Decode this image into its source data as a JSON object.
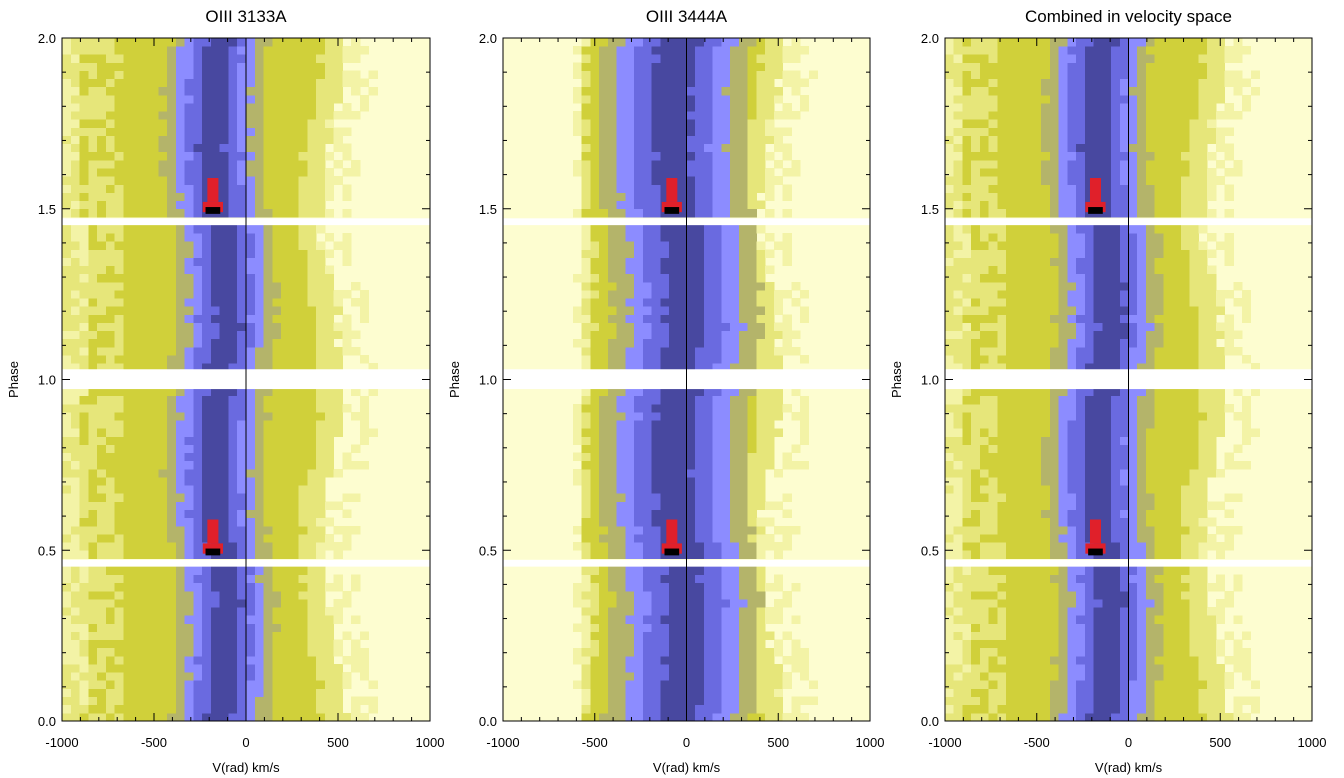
{
  "chart_data": [
    {
      "type": "heatmap",
      "title": "OIII 3133A",
      "xlabel": "V(rad) km/s",
      "ylabel": "Phase",
      "xlim": [
        -1000,
        1000
      ],
      "ylim": [
        0.0,
        2.0
      ],
      "x_ticks": [
        "-1000",
        "-500",
        "0",
        "500",
        "1000"
      ],
      "y_ticks": [
        "0.0",
        "0.5",
        "1.0",
        "1.5",
        "2.0"
      ],
      "reference_line_x": 0,
      "gaps": [
        [
          0.452,
          0.472
        ],
        [
          0.972,
          1.03
        ],
        [
          1.452,
          1.472
        ]
      ],
      "profile": {
        "center": -140,
        "core_half_width": 200,
        "outer_half_width": 470,
        "blue_wing_extent": 1000
      }
    },
    {
      "type": "heatmap",
      "title": "OIII 3444A",
      "xlabel": "V(rad) km/s",
      "ylabel": "Phase",
      "xlim": [
        -1000,
        1000
      ],
      "ylim": [
        0.0,
        2.0
      ],
      "x_ticks": [
        "-1000",
        "-500",
        "0",
        "500",
        "1000"
      ],
      "y_ticks": [
        "0.0",
        "0.5",
        "1.0",
        "1.5",
        "2.0"
      ],
      "reference_line_x": 0,
      "gaps": [
        [
          0.452,
          0.472
        ],
        [
          0.972,
          1.03
        ],
        [
          1.452,
          1.472
        ]
      ],
      "profile": {
        "center": -40,
        "core_half_width": 300,
        "outer_half_width": 460,
        "blue_wing_extent": 600
      }
    },
    {
      "type": "heatmap",
      "title": "Combined in velocity space",
      "xlabel": "V(rad) km/s",
      "ylabel": "Phase",
      "xlim": [
        -1000,
        1000
      ],
      "ylim": [
        0.0,
        2.0
      ],
      "x_ticks": [
        "-1000",
        "-500",
        "0",
        "500",
        "1000"
      ],
      "y_ticks": [
        "0.0",
        "0.5",
        "1.0",
        "1.5",
        "2.0"
      ],
      "reference_line_x": 0,
      "gaps": [
        [
          0.452,
          0.472
        ],
        [
          0.972,
          1.03
        ],
        [
          1.452,
          1.472
        ]
      ],
      "profile": {
        "center": -140,
        "core_half_width": 210,
        "outer_half_width": 470,
        "blue_wing_extent": 1000
      }
    }
  ],
  "colors": {
    "background": "#fdfdd0",
    "level1": "#f3f3a6",
    "level2": "#e6e67a",
    "level3": "#d0d03a",
    "level4": "#b4b46a",
    "level5": "#8c8cff",
    "level6": "#6a6ae0",
    "level7": "#4848a0",
    "peak": "#e0202a",
    "peak_core": "#000000",
    "gap": "#ffffff",
    "axis": "#000000"
  }
}
